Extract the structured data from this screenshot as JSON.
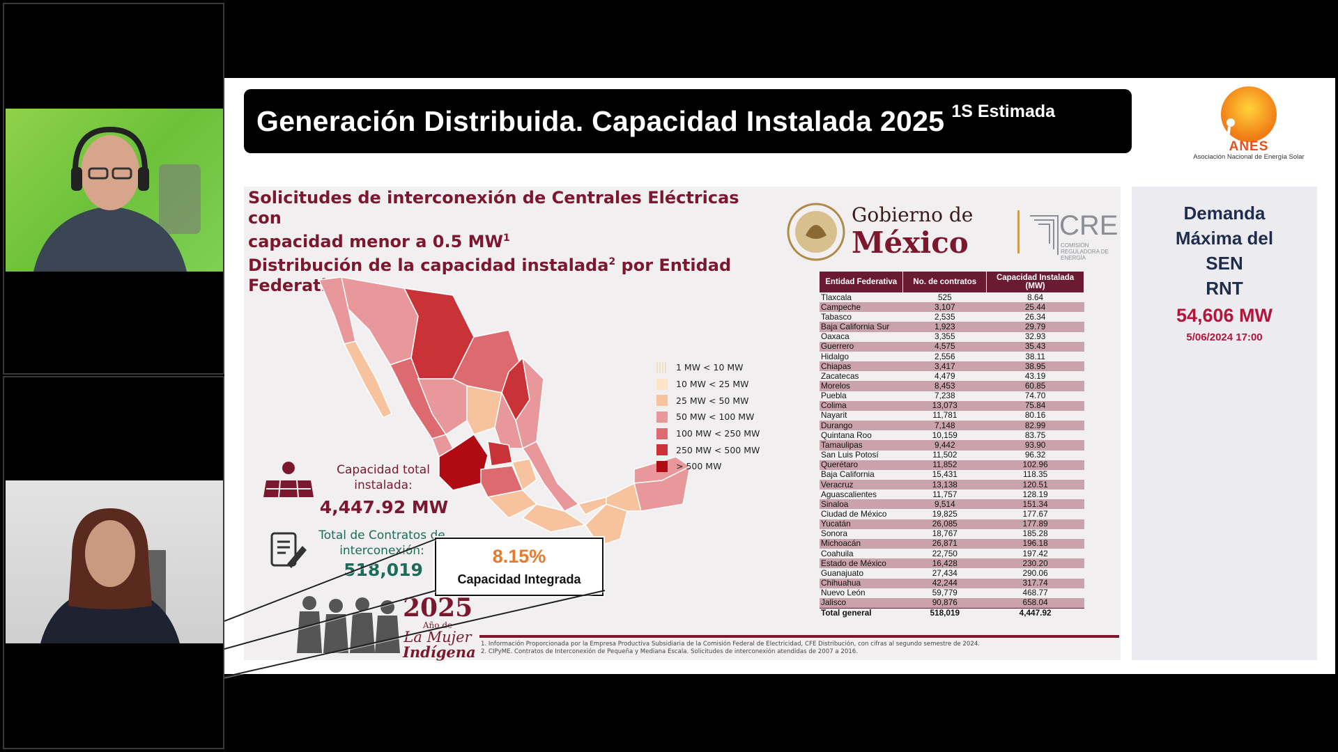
{
  "slide": {
    "title": "Generación Distribuida. Capacidad Instalada 2025",
    "title_sup": "1S Estimada",
    "anes_word": "ANES",
    "anes_name": "Asociación Nacional de Energía Solar",
    "heading_line1": "Solicitudes de interconexión de Centrales Eléctricas con",
    "heading_line2": "capacidad menor a 0.5 MW",
    "heading_sup1": "1",
    "heading_line3": "Distribución de la capacidad instalada",
    "heading_sup2": "2",
    "heading_line3b": " por Entidad",
    "heading_line4": "Federativa",
    "gob_line1": "Gobierno de",
    "gob_line2": "México",
    "cre_word": "CRE",
    "cre_sub": "COMISIÓN REGULADORA DE ENERGÍA",
    "legend": [
      {
        "label": "1 MW < 10 MW",
        "color": "#efe1c4"
      },
      {
        "label": "10 MW < 25 MW",
        "color": "#fbe5c6"
      },
      {
        "label": "25 MW < 50 MW",
        "color": "#f6c39e"
      },
      {
        "label": "50 MW < 100 MW",
        "color": "#e8989a"
      },
      {
        "label": "100 MW < 250 MW",
        "color": "#dc6a6e"
      },
      {
        "label": "250 MW < 500 MW",
        "color": "#c93338"
      },
      {
        "label": "> 500 MW",
        "color": "#b00a12"
      }
    ],
    "capacity_label": "Capacidad total instalada:",
    "capacity_value": "4,447.92 MW",
    "contracts_label": "Total de Contratos de interconexión:",
    "contracts_value": "518,019",
    "callout_pct": "8.15%",
    "callout_label": "Capacidad Integrada",
    "year": "2025",
    "year_sub": "Año de",
    "year_l1": "La Mujer",
    "year_l2": "Indígena",
    "footnote1": "1. Información Proporcionada por la Empresa Productiva Subsidiaria de la Comisión Federal de Electricidad, CFE Distribución, con cifras al segundo semestre de 2024.",
    "footnote2": "2. CIPyME. Contratos de Interconexión de Pequeña y Mediana Escala. Solicitudes de interconexión atendidas de 2007 a 2016.",
    "table": {
      "headers": [
        "Entidad Federativa",
        "No. de contratos",
        "Capacidad Instalada (MW)"
      ],
      "rows": [
        [
          "Tlaxcala",
          "525",
          "8.64"
        ],
        [
          "Campeche",
          "3,107",
          "25.44"
        ],
        [
          "Tabasco",
          "2,535",
          "26.34"
        ],
        [
          "Baja California Sur",
          "1,923",
          "29.79"
        ],
        [
          "Oaxaca",
          "3,355",
          "32.93"
        ],
        [
          "Guerrero",
          "4,575",
          "35.43"
        ],
        [
          "Hidalgo",
          "2,556",
          "38.11"
        ],
        [
          "Chiapas",
          "3,417",
          "38.95"
        ],
        [
          "Zacatecas",
          "4,479",
          "43.19"
        ],
        [
          "Morelos",
          "8,453",
          "60.85"
        ],
        [
          "Puebla",
          "7,238",
          "74.70"
        ],
        [
          "Colima",
          "13,073",
          "75.84"
        ],
        [
          "Nayarit",
          "11,781",
          "80.16"
        ],
        [
          "Durango",
          "7,148",
          "82.99"
        ],
        [
          "Quintana Roo",
          "10,159",
          "83.75"
        ],
        [
          "Tamaulipas",
          "9,442",
          "93.90"
        ],
        [
          "San Luis Potosí",
          "11,502",
          "96.32"
        ],
        [
          "Querétaro",
          "11,852",
          "102.96"
        ],
        [
          "Baja California",
          "15,431",
          "118.35"
        ],
        [
          "Veracruz",
          "13,138",
          "120.51"
        ],
        [
          "Aguascalientes",
          "11,757",
          "128.19"
        ],
        [
          "Sinaloa",
          "9,514",
          "151.34"
        ],
        [
          "Ciudad de México",
          "19,825",
          "177.67"
        ],
        [
          "Yucatán",
          "26,085",
          "177.89"
        ],
        [
          "Sonora",
          "18,767",
          "185.28"
        ],
        [
          "Michoacán",
          "26,871",
          "196.18"
        ],
        [
          "Coahuila",
          "22,750",
          "197.42"
        ],
        [
          "Estado de México",
          "16,428",
          "230.20"
        ],
        [
          "Guanajuato",
          "27,434",
          "290.06"
        ],
        [
          "Chihuahua",
          "42,244",
          "317.74"
        ],
        [
          "Nuevo León",
          "59,779",
          "468.77"
        ],
        [
          "Jalisco",
          "90,876",
          "658.04"
        ]
      ],
      "total": [
        "Total general",
        "518,019",
        "4,447.92"
      ]
    },
    "side_title": [
      "Demanda",
      "Máxima del",
      "SEN",
      "RNT"
    ],
    "side_value": "54,606 MW",
    "side_date": "5/06/2024 17:00"
  }
}
